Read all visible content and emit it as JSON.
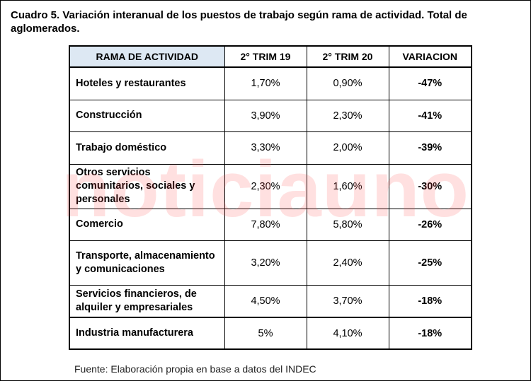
{
  "title": "Cuadro 5. Variación interanual de los puestos de trabajo según rama de actividad. Total de aglomerados.",
  "watermark": "noticiauno",
  "table": {
    "headers": [
      "RAMA DE ACTIVIDAD",
      "2° TRIM 19",
      "2° TRIM 20",
      "VARIACION"
    ],
    "rows": [
      {
        "activity": "Hoteles y restaurantes",
        "t19": "1,70%",
        "t20": "0,90%",
        "var": "-47%"
      },
      {
        "activity": "Construcción",
        "t19": "3,90%",
        "t20": "2,30%",
        "var": "-41%"
      },
      {
        "activity": "Trabajo doméstico",
        "t19": "3,30%",
        "t20": "2,00%",
        "var": "-39%"
      },
      {
        "activity": "Otros servicios comunitarios, sociales y personales",
        "t19": "2,30%",
        "t20": "1,60%",
        "var": "-30%"
      },
      {
        "activity": "Comercio",
        "t19": "7,80%",
        "t20": "5,80%",
        "var": "-26%"
      },
      {
        "activity": "Transporte, almacenamiento y comunicaciones",
        "t19": "3,20%",
        "t20": "2,40%",
        "var": "-25%"
      },
      {
        "activity": "Servicios financieros, de alquiler y empresariales",
        "t19": "4,50%",
        "t20": "3,70%",
        "var": "-18%"
      },
      {
        "activity": "Industria manufacturera",
        "t19": "5%",
        "t20": "4,10%",
        "var": "-18%"
      }
    ]
  },
  "source": "Fuente: Elaboración propia en base a datos del INDEC",
  "colors": {
    "header_accent": "#dde8f3",
    "watermark": "#ff4646"
  }
}
